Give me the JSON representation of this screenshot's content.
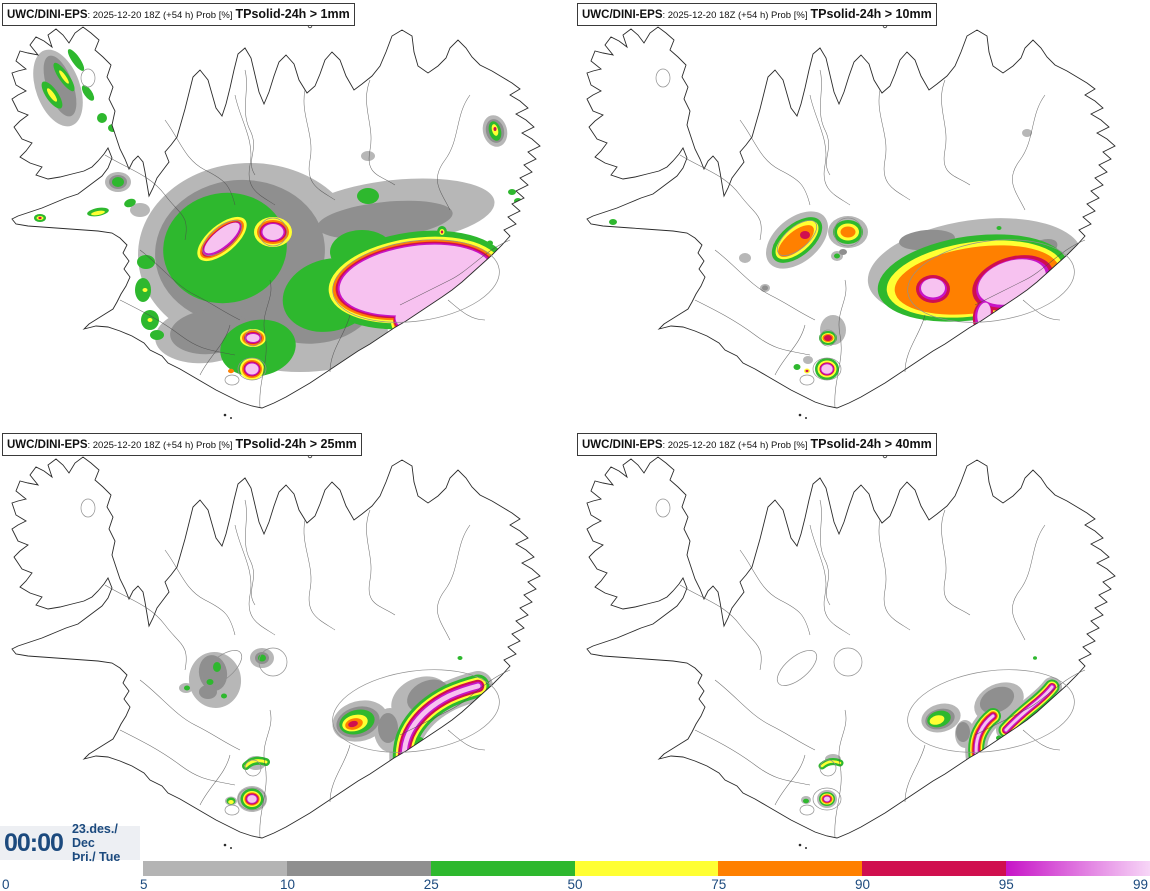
{
  "panels": [
    {
      "product": "UWC/DINI-EPS",
      "meta": ": 2025-12-20 18Z (+54 h) Prob [%]",
      "threshold": "TPsolid-24h > 1mm"
    },
    {
      "product": "UWC/DINI-EPS",
      "meta": ": 2025-12-20 18Z (+54 h) Prob [%]",
      "threshold": "TPsolid-24h > 10mm"
    },
    {
      "product": "UWC/DINI-EPS",
      "meta": ": 2025-12-20 18Z (+54 h) Prob [%]",
      "threshold": "TPsolid-24h > 25mm"
    },
    {
      "product": "UWC/DINI-EPS",
      "meta": ": 2025-12-20 18Z (+54 h) Prob [%]",
      "threshold": "TPsolid-24h > 40mm"
    }
  ],
  "clock": {
    "time": "00:00",
    "date": "23.des./ Dec",
    "weekday": "Þri./ Tue"
  },
  "colorbar": {
    "ticks": [
      "0",
      "5",
      "10",
      "25",
      "50",
      "75",
      "90",
      "95",
      "99"
    ],
    "segments": [
      {
        "range": "5-10",
        "color": "#b4b4b4"
      },
      {
        "range": "10-25",
        "color": "#8f8f8f"
      },
      {
        "range": "25-50",
        "color": "#2eb82e"
      },
      {
        "range": "50-75",
        "color": "#ffff33"
      },
      {
        "range": "75-90",
        "color": "#ff8000"
      },
      {
        "range": "90-95",
        "color": "#d00f4e"
      },
      {
        "range": "95-99",
        "color": "#c715c7",
        "color_end": "#f7d6f7"
      }
    ]
  },
  "palette": {
    "gray_light": "#b7b7b7",
    "gray_dark": "#8f8f8f",
    "green": "#2eb82e",
    "yellow": "#ffff33",
    "orange": "#ff8000",
    "crimson": "#d00f4e",
    "magenta": "#c715c7",
    "pink": "#f7c2f0",
    "coast": "#2b2b2b",
    "border": "#4a4a4a",
    "glacier": "#909090",
    "navy": "#1c4a7e",
    "clock_bg": "#edeff3"
  }
}
